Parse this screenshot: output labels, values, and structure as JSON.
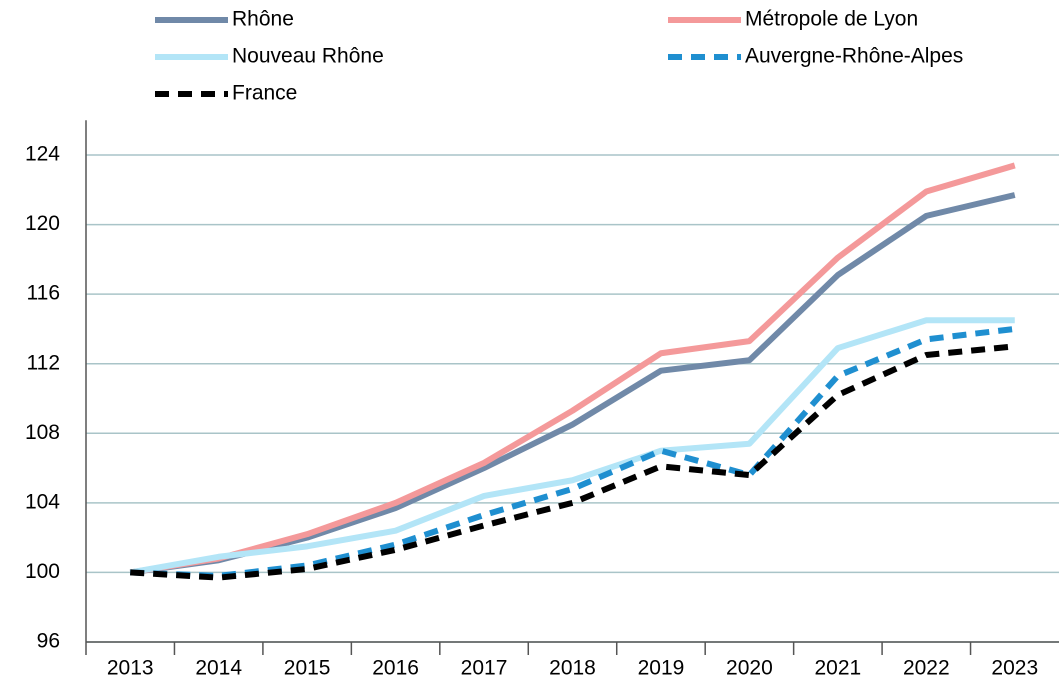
{
  "chart_data": {
    "type": "line",
    "categories": [
      "2013",
      "2014",
      "2015",
      "2016",
      "2017",
      "2018",
      "2019",
      "2020",
      "2021",
      "2022",
      "2023"
    ],
    "series": [
      {
        "name": "Rhône",
        "color": "#7089a8",
        "dash": "solid",
        "values": [
          100,
          100.7,
          102.0,
          103.7,
          106.0,
          108.5,
          111.6,
          112.2,
          117.1,
          120.5,
          121.7
        ]
      },
      {
        "name": "Métropole de Lyon",
        "color": "#f4999a",
        "dash": "solid",
        "values": [
          100,
          100.8,
          102.2,
          104.0,
          106.3,
          109.3,
          112.6,
          113.3,
          118.1,
          121.9,
          123.4
        ]
      },
      {
        "name": "Nouveau Rhône",
        "color": "#b3e5f7",
        "dash": "solid",
        "values": [
          100,
          100.9,
          101.5,
          102.4,
          104.4,
          105.3,
          107.0,
          107.4,
          112.9,
          114.5,
          114.5
        ]
      },
      {
        "name": "Auvergne-Rhône-Alpes",
        "color": "#1f8fd0",
        "dash": "dashed",
        "values": [
          100,
          99.8,
          100.4,
          101.6,
          103.3,
          104.8,
          107.0,
          105.6,
          111.3,
          113.4,
          114.0
        ]
      },
      {
        "name": "France",
        "color": "#000000",
        "dash": "dashed",
        "values": [
          100,
          99.7,
          100.2,
          101.3,
          102.7,
          104.0,
          106.1,
          105.6,
          110.2,
          112.5,
          113.0
        ]
      }
    ],
    "ylim": [
      96,
      126
    ],
    "yticks": [
      96,
      100,
      104,
      108,
      112,
      116,
      120,
      124
    ],
    "grid": true
  }
}
